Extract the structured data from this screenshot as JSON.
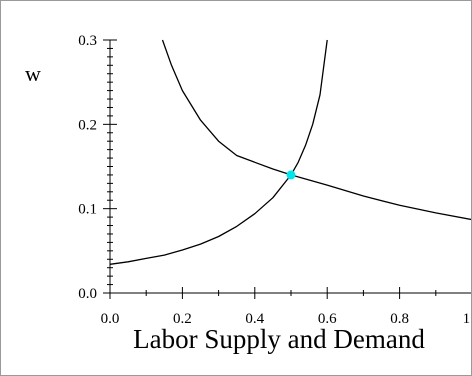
{
  "chart_data": {
    "type": "line",
    "title": "Labor Supply and Demand",
    "ylabel": "w",
    "xlabel": "",
    "xlim": [
      0.0,
      1.0
    ],
    "ylim": [
      0.0,
      0.3
    ],
    "x_ticks": [
      "0.0",
      "0.2",
      "0.4",
      "0.6",
      "0.8",
      "1.0"
    ],
    "y_ticks": [
      "0.0",
      "0.1",
      "0.2",
      "0.3"
    ],
    "grid": false,
    "series": [
      {
        "color": "#000000",
        "x": [
          0.0,
          0.05,
          0.1,
          0.15,
          0.2,
          0.25,
          0.3,
          0.35,
          0.4,
          0.45,
          0.5,
          0.52,
          0.54,
          0.56,
          0.58,
          0.6
        ],
        "y": [
          0.034,
          0.037,
          0.041,
          0.045,
          0.051,
          0.058,
          0.067,
          0.079,
          0.094,
          0.113,
          0.14,
          0.155,
          0.175,
          0.2,
          0.235,
          0.3
        ]
      },
      {
        "color": "#000000",
        "x": [
          0.145,
          0.17,
          0.2,
          0.25,
          0.3,
          0.35,
          0.4,
          0.45,
          0.5,
          0.6,
          0.7,
          0.8,
          0.9,
          1.0
        ],
        "y": [
          0.3,
          0.27,
          0.24,
          0.205,
          0.18,
          0.163,
          0.155,
          0.147,
          0.14,
          0.128,
          0.115,
          0.104,
          0.095,
          0.087
        ]
      }
    ],
    "equilibrium": {
      "x": 0.5,
      "y": 0.14,
      "color": "#00e5ee"
    }
  }
}
